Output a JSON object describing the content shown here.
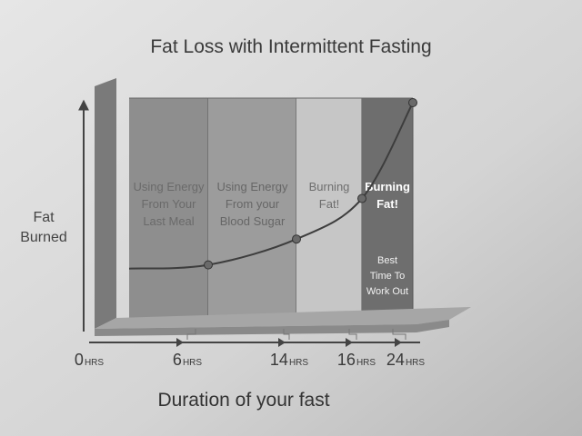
{
  "chart_data": {
    "type": "line",
    "title": "Fat Loss with Intermittent Fasting",
    "ylabel_lines": [
      "Fat",
      "Burned"
    ],
    "xlabel": "Duration of your fast",
    "x_unit": "HRS",
    "x_ticks": [
      {
        "num": "0",
        "value": 0
      },
      {
        "num": "6",
        "value": 6
      },
      {
        "num": "14",
        "value": 14
      },
      {
        "num": "16",
        "value": 16
      },
      {
        "num": "24",
        "value": 24
      }
    ],
    "phases": [
      {
        "from": 0,
        "to": 6,
        "lines": [
          "Using Energy",
          "From Your",
          "Last Meal"
        ],
        "shade": "#8e8e8e",
        "text_color": "#6a6a6a"
      },
      {
        "from": 6,
        "to": 14,
        "lines": [
          "Using Energy",
          "From your",
          "Blood Sugar"
        ],
        "shade": "#9c9c9c",
        "text_color": "#666666"
      },
      {
        "from": 14,
        "to": 16,
        "lines": [
          "Burning",
          "Fat!"
        ],
        "shade": "#c6c6c6",
        "text_color": "#6e6e6e"
      },
      {
        "from": 16,
        "to": 24,
        "lines": [
          "Burning",
          "Fat!"
        ],
        "shade": "#6e6e6e",
        "text_color": "#ffffff"
      }
    ],
    "annotation": [
      "Best",
      "Time To",
      "Work Out"
    ],
    "curve": {
      "x": [
        0,
        6,
        14,
        16,
        24
      ],
      "y": [
        0.1,
        0.12,
        0.26,
        0.48,
        1.0
      ],
      "markers": [
        6,
        14,
        16,
        24
      ]
    },
    "ylim": [
      0,
      1
    ],
    "grid": false
  }
}
